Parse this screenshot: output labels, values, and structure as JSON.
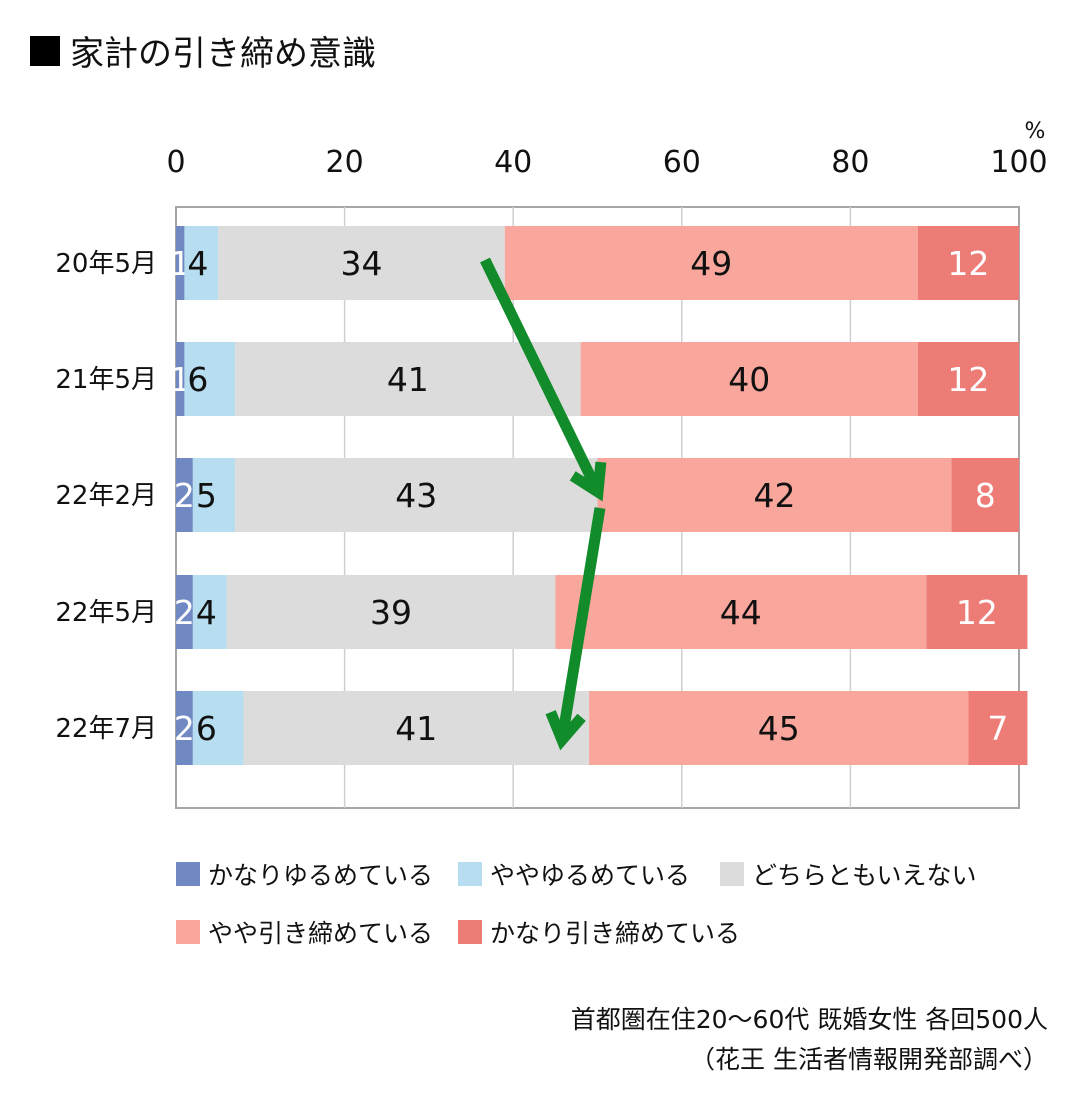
{
  "title": "家計の引き締め意識",
  "chart_data": {
    "type": "bar",
    "orientation": "horizontal",
    "stacked": true,
    "categories": [
      "20年5月",
      "21年5月",
      "22年2月",
      "22年5月",
      "22年7月"
    ],
    "series": [
      {
        "name": "かなりゆるめている",
        "color": "#7189c2",
        "values": [
          1,
          1,
          2,
          2,
          2
        ]
      },
      {
        "name": "ややゆるめている",
        "color": "#b6ddf0",
        "values": [
          4,
          6,
          5,
          4,
          6
        ]
      },
      {
        "name": "どちらともいえない",
        "color": "#dcdcdc",
        "values": [
          34,
          41,
          43,
          39,
          41
        ]
      },
      {
        "name": "やや引き締めている",
        "color": "#f9a69c",
        "values": [
          49,
          40,
          42,
          44,
          45
        ]
      },
      {
        "name": "かなり引き締めている",
        "color": "#ec7c75",
        "values": [
          12,
          12,
          8,
          12,
          7
        ]
      }
    ],
    "xlim": [
      0,
      100
    ],
    "xticks": [
      0,
      20,
      40,
      60,
      80,
      100
    ],
    "xtick_labels": [
      "0",
      "20",
      "40",
      "60",
      "80",
      "100"
    ],
    "unit": "%",
    "grid": true,
    "legend_position": "bottom",
    "annotation": "green arrows trace the rising share of households tightening spending",
    "arrow_color": "#128c2a"
  },
  "legend": {
    "rows": [
      [
        "かなりゆるめている",
        "ややゆるめている",
        "どちらともいえない"
      ],
      [
        "やや引き締めている",
        "かなり引き締めている"
      ]
    ]
  },
  "source": {
    "line1": "首都圏在住20〜60代 既婚女性 各回500人",
    "line2": "（花王 生活者情報開発部調べ）"
  }
}
